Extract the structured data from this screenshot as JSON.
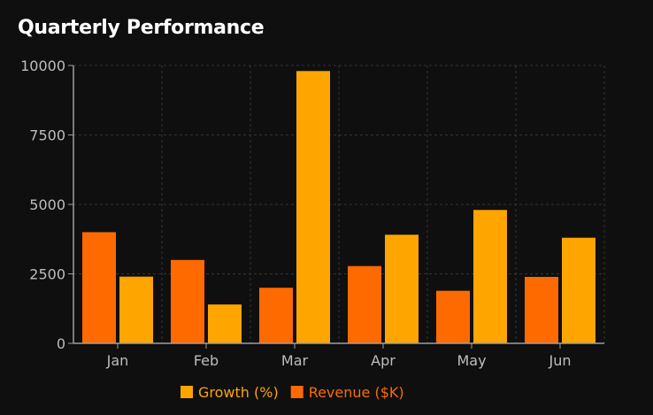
{
  "chart_data": {
    "type": "bar",
    "title": "Quarterly Performance",
    "categories": [
      "Jan",
      "Feb",
      "Mar",
      "Apr",
      "May",
      "Jun"
    ],
    "series": [
      {
        "name": "Revenue ($K)",
        "values": [
          4000,
          3000,
          2000,
          2780,
          1890,
          2390
        ],
        "color": "#ff6a00"
      },
      {
        "name": "Growth (%)",
        "values": [
          2400,
          1398,
          9800,
          3908,
          4800,
          3800
        ],
        "color": "#ffa500"
      }
    ],
    "legend_order": [
      1,
      0
    ],
    "ylim": [
      0,
      10000
    ],
    "yticks": [
      0,
      2500,
      5000,
      7500,
      10000
    ],
    "xlabel": "",
    "ylabel": "",
    "grid": true,
    "legend_position": "bottom-center",
    "colors": {
      "background": "#0f0f0f",
      "grid": "#333333",
      "axis": "#9e9e9e",
      "tick_text": "#bdbdbd"
    }
  }
}
